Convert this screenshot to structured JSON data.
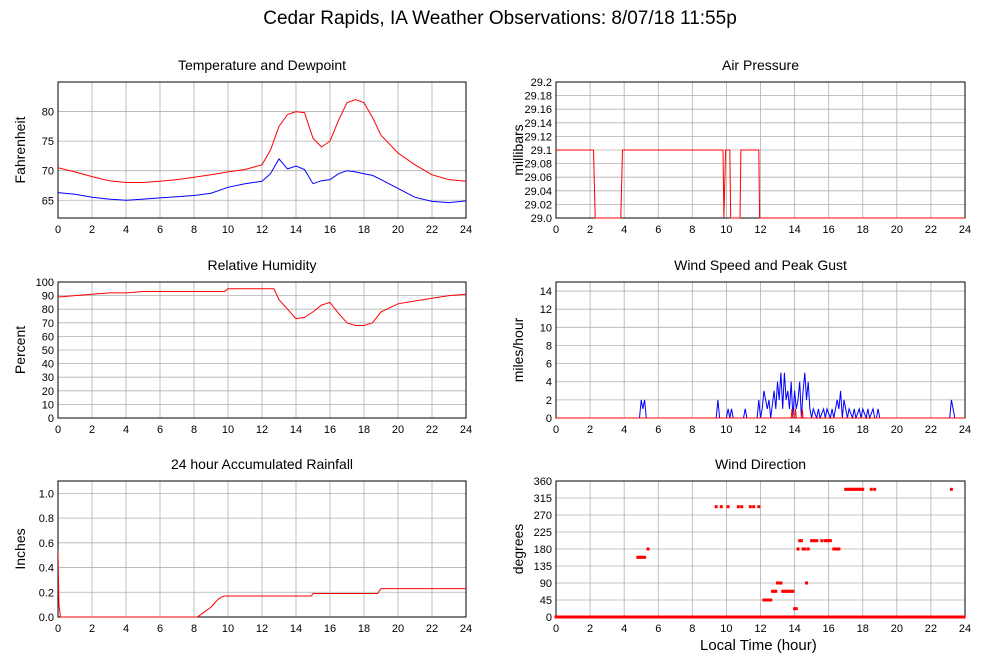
{
  "page": {
    "title": "Cedar Rapids, IA Weather Observations: 8/07/18 11:55p",
    "x_axis_title": "Local Time (hour)"
  },
  "colors": {
    "red": "#ff0000",
    "blue": "#0000ff",
    "grid": "#b0b0b0",
    "frame": "#000000"
  },
  "chart_data": [
    {
      "id": "temperature",
      "type": "line",
      "title": "Temperature and Dewpoint",
      "ylabel": "Fahrenheit",
      "xlabel": "",
      "xlim": [
        0,
        24
      ],
      "ylim": [
        62,
        85
      ],
      "xticks": [
        0,
        2,
        4,
        6,
        8,
        10,
        12,
        14,
        16,
        18,
        20,
        22,
        24
      ],
      "yticks": [
        65,
        70,
        75,
        80
      ],
      "grid": true,
      "series": [
        {
          "color": "#ff0000",
          "x": [
            0,
            1,
            2,
            3,
            4,
            5,
            6,
            7,
            8,
            9,
            10,
            11,
            12,
            12.5,
            13,
            13.5,
            14,
            14.5,
            15,
            15.5,
            16,
            16.5,
            17,
            17.5,
            18,
            18.5,
            19,
            20,
            21,
            22,
            23,
            24
          ],
          "values": [
            70.5,
            69.8,
            69,
            68.3,
            68,
            68,
            68.2,
            68.5,
            68.9,
            69.3,
            69.8,
            70.2,
            71,
            73.5,
            77.5,
            79.5,
            80,
            79.8,
            75.5,
            74,
            75,
            78.5,
            81.5,
            82,
            81.5,
            79,
            76,
            73,
            71,
            69.3,
            68.5,
            68.2
          ]
        },
        {
          "color": "#0000ff",
          "x": [
            0,
            1,
            2,
            3,
            4,
            5,
            6,
            7,
            8,
            9,
            10,
            11,
            12,
            12.5,
            13,
            13.5,
            14,
            14.5,
            15,
            15.5,
            16,
            16.5,
            17,
            17.5,
            18,
            18.5,
            19,
            20,
            21,
            22,
            23,
            24
          ],
          "values": [
            66.3,
            66,
            65.5,
            65.2,
            65,
            65.2,
            65.4,
            65.6,
            65.8,
            66.2,
            67.2,
            67.8,
            68.2,
            69.5,
            72,
            70.3,
            70.8,
            70.2,
            67.8,
            68.3,
            68.5,
            69.5,
            70,
            69.8,
            69.5,
            69.2,
            68.5,
            67,
            65.5,
            64.8,
            64.6,
            64.9
          ]
        }
      ]
    },
    {
      "id": "pressure",
      "type": "line",
      "title": "Air Pressure",
      "ylabel": "millibars",
      "xlabel": "",
      "xlim": [
        0,
        24
      ],
      "ylim": [
        29.0,
        29.2
      ],
      "xticks": [
        0,
        2,
        4,
        6,
        8,
        10,
        12,
        14,
        16,
        18,
        20,
        22,
        24
      ],
      "yticks": [
        "29.0",
        "29.02",
        "29.04",
        "29.06",
        "29.08",
        "29.1",
        "29.12",
        "29.14",
        "29.16",
        "29.18",
        "29.2"
      ],
      "grid": true,
      "series": [
        {
          "color": "#ff0000",
          "x": [
            0,
            2.2,
            2.3,
            3.8,
            3.9,
            9.8,
            9.85,
            9.95,
            10.0,
            10.2,
            10.25,
            10.8,
            10.85,
            11.9,
            11.95,
            24
          ],
          "values": [
            29.1,
            29.1,
            29.0,
            29.0,
            29.1,
            29.1,
            29.0,
            29.1,
            29.1,
            29.1,
            29.0,
            29.0,
            29.1,
            29.1,
            29.0,
            29.0
          ]
        }
      ]
    },
    {
      "id": "humidity",
      "type": "line",
      "title": "Relative Humidity",
      "ylabel": "Percent",
      "xlabel": "",
      "xlim": [
        0,
        24
      ],
      "ylim": [
        0,
        100
      ],
      "xticks": [
        0,
        2,
        4,
        6,
        8,
        10,
        12,
        14,
        16,
        18,
        20,
        22,
        24
      ],
      "yticks": [
        0,
        10,
        20,
        30,
        40,
        50,
        60,
        70,
        80,
        90,
        100
      ],
      "grid": true,
      "series": [
        {
          "color": "#ff0000",
          "x": [
            0,
            1,
            2,
            3,
            4,
            5,
            6,
            7,
            8,
            9,
            9.8,
            10,
            11,
            12,
            12.7,
            13,
            13.5,
            14,
            14.5,
            15,
            15.5,
            16,
            16.5,
            17,
            17.5,
            18,
            18.5,
            19,
            20,
            21,
            22,
            23,
            24
          ],
          "values": [
            89,
            90,
            91,
            92,
            92,
            93,
            93,
            93,
            93,
            93,
            93,
            95,
            95,
            95,
            95,
            87,
            80,
            73,
            74,
            78,
            83,
            85,
            77,
            70,
            68,
            68,
            70,
            78,
            84,
            86,
            88,
            90,
            91
          ]
        }
      ]
    },
    {
      "id": "wind-speed",
      "type": "line",
      "title": "Wind Speed and Peak Gust",
      "ylabel": "miles/hour",
      "xlabel": "",
      "xlim": [
        0,
        24
      ],
      "ylim": [
        0,
        15
      ],
      "xticks": [
        0,
        2,
        4,
        6,
        8,
        10,
        12,
        14,
        16,
        18,
        20,
        22,
        24
      ],
      "yticks": [
        0,
        2,
        4,
        6,
        8,
        10,
        12,
        14
      ],
      "grid": true,
      "series": [
        {
          "color": "#0000ff",
          "x": [
            0,
            4.9,
            5.0,
            5.1,
            5.2,
            5.3,
            5.4,
            9.4,
            9.5,
            9.6,
            10.0,
            10.1,
            10.2,
            10.3,
            10.4,
            11.0,
            11.1,
            11.2,
            11.8,
            11.9,
            12.0,
            12.1,
            12.2,
            12.4,
            12.5,
            12.6,
            12.8,
            12.9,
            13.0,
            13.1,
            13.2,
            13.3,
            13.4,
            13.5,
            13.6,
            13.7,
            13.8,
            13.9,
            14.0,
            14.1,
            14.2,
            14.3,
            14.4,
            14.5,
            14.6,
            14.7,
            14.8,
            14.9,
            15.0,
            15.1,
            15.3,
            15.4,
            15.5,
            15.7,
            15.8,
            15.9,
            16.1,
            16.2,
            16.3,
            16.5,
            16.6,
            16.7,
            16.8,
            16.9,
            17.0,
            17.1,
            17.2,
            17.4,
            17.5,
            17.6,
            17.8,
            17.9,
            18.0,
            18.2,
            18.3,
            18.4,
            18.6,
            18.7,
            18.8,
            18.9,
            19.0,
            23.1,
            23.2,
            23.3,
            23.4,
            24
          ],
          "values": [
            0,
            0,
            2,
            1,
            2,
            0,
            0,
            0,
            2,
            0,
            0,
            1,
            0,
            1,
            0,
            0,
            1,
            0,
            0,
            2,
            0,
            1,
            3,
            1,
            2,
            0,
            3,
            1,
            4,
            2,
            5,
            1,
            5,
            2,
            3,
            1,
            4,
            0,
            3,
            1,
            2,
            4,
            0,
            3,
            5,
            2,
            4,
            1,
            0,
            1,
            0,
            1,
            0,
            1,
            0,
            1,
            0,
            1,
            0,
            2,
            1,
            3,
            0,
            2,
            1,
            0,
            1,
            0,
            1,
            0,
            1,
            0,
            1,
            0,
            1,
            0,
            1,
            0,
            0,
            1,
            0,
            0,
            2,
            1,
            0,
            0
          ]
        },
        {
          "color": "#ff0000",
          "x": [
            0,
            13.8,
            13.85,
            13.9,
            14.0,
            14.05,
            14.1,
            14.4,
            14.45,
            14.5,
            24
          ],
          "values": [
            0,
            0,
            1,
            0,
            0,
            1,
            0,
            0,
            1,
            0,
            0
          ]
        }
      ]
    },
    {
      "id": "rainfall",
      "type": "line",
      "title": "24 hour Accumulated Rainfall",
      "ylabel": "Inches",
      "xlabel": "",
      "xlim": [
        0,
        24
      ],
      "ylim": [
        0,
        1.1
      ],
      "xticks": [
        0,
        2,
        4,
        6,
        8,
        10,
        12,
        14,
        16,
        18,
        20,
        22,
        24
      ],
      "yticks": [
        "0.0",
        "0.2",
        "0.4",
        "0.6",
        "0.8",
        "1.0"
      ],
      "grid": true,
      "series": [
        {
          "color": "#ff0000",
          "x": [
            0,
            0.05,
            0.15,
            8.2,
            8.5,
            8.8,
            9.0,
            9.2,
            9.4,
            9.6,
            9.8,
            10.2,
            14.9,
            15.0,
            18.8,
            19.0,
            24
          ],
          "values": [
            0.54,
            0.1,
            0.0,
            0.0,
            0.03,
            0.06,
            0.08,
            0.11,
            0.14,
            0.16,
            0.17,
            0.17,
            0.17,
            0.19,
            0.19,
            0.23,
            0.23
          ]
        }
      ]
    },
    {
      "id": "wind-direction",
      "type": "scatter",
      "title": "Wind Direction",
      "ylabel": "degrees",
      "xlabel": "Local Time (hour)",
      "xlim": [
        0,
        24
      ],
      "ylim": [
        0,
        360
      ],
      "xticks": [
        0,
        2,
        4,
        6,
        8,
        10,
        12,
        14,
        16,
        18,
        20,
        22,
        24
      ],
      "yticks": [
        0,
        45,
        90,
        135,
        180,
        225,
        270,
        315,
        360
      ],
      "grid": true,
      "series": [
        {
          "color": "#ff0000",
          "points": [
            [
              4.8,
              158
            ],
            [
              4.9,
              158
            ],
            [
              5.0,
              158
            ],
            [
              5.1,
              158
            ],
            [
              5.2,
              158
            ],
            [
              5.4,
              180
            ],
            [
              9.4,
              292
            ],
            [
              9.7,
              292
            ],
            [
              10.1,
              292
            ],
            [
              10.7,
              292
            ],
            [
              10.9,
              292
            ],
            [
              11.4,
              292
            ],
            [
              11.6,
              292
            ],
            [
              11.9,
              292
            ],
            [
              12.2,
              45
            ],
            [
              12.3,
              45
            ],
            [
              12.4,
              45
            ],
            [
              12.5,
              45
            ],
            [
              12.6,
              45
            ],
            [
              12.7,
              68
            ],
            [
              12.8,
              68
            ],
            [
              12.9,
              68
            ],
            [
              13.0,
              90
            ],
            [
              13.1,
              90
            ],
            [
              13.2,
              90
            ],
            [
              13.3,
              68
            ],
            [
              13.4,
              68
            ],
            [
              13.5,
              68
            ],
            [
              13.6,
              68
            ],
            [
              13.7,
              68
            ],
            [
              13.8,
              68
            ],
            [
              13.9,
              68
            ],
            [
              14.0,
              22
            ],
            [
              14.1,
              22
            ],
            [
              14.2,
              180
            ],
            [
              14.3,
              202
            ],
            [
              14.4,
              202
            ],
            [
              14.5,
              180
            ],
            [
              14.6,
              180
            ],
            [
              14.7,
              90
            ],
            [
              14.8,
              180
            ],
            [
              15.0,
              202
            ],
            [
              15.1,
              202
            ],
            [
              15.2,
              202
            ],
            [
              15.3,
              202
            ],
            [
              15.6,
              202
            ],
            [
              15.8,
              202
            ],
            [
              15.9,
              202
            ],
            [
              16.0,
              202
            ],
            [
              16.1,
              202
            ],
            [
              16.3,
              180
            ],
            [
              16.4,
              180
            ],
            [
              16.5,
              180
            ],
            [
              16.6,
              180
            ],
            [
              17.0,
              338
            ],
            [
              17.1,
              338
            ],
            [
              17.2,
              338
            ],
            [
              17.3,
              338
            ],
            [
              17.4,
              338
            ],
            [
              17.5,
              338
            ],
            [
              17.6,
              338
            ],
            [
              17.7,
              338
            ],
            [
              17.8,
              338
            ],
            [
              17.9,
              338
            ],
            [
              18.0,
              338
            ],
            [
              18.5,
              338
            ],
            [
              18.7,
              338
            ],
            [
              23.2,
              338
            ]
          ]
        }
      ]
    }
  ]
}
